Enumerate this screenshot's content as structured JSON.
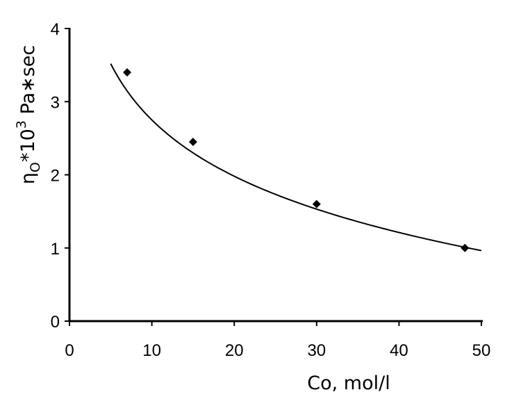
{
  "chart_data": {
    "type": "scatter",
    "title": "",
    "xlabel": "Co, mol/l",
    "ylabel": {
      "base": "η",
      "subscript": "O",
      "middle": "*10",
      "superscript": "3",
      "suffix": " Pa∗sec"
    },
    "xlim": [
      0,
      50
    ],
    "ylim": [
      0,
      4
    ],
    "x_ticks": [
      "0",
      "10",
      "20",
      "30",
      "40",
      "50"
    ],
    "y_ticks": [
      "0",
      "1",
      "2",
      "3",
      "4"
    ],
    "grid": false,
    "legend": "none",
    "series": [
      {
        "marker": "diamond",
        "color": "#000000",
        "x": [
          7,
          15,
          30,
          48
        ],
        "y": [
          3.4,
          2.45,
          1.6,
          1.0
        ]
      }
    ],
    "trendline": {
      "kind": "logarithmic",
      "color": "#000000",
      "x_range": [
        5,
        50
      ],
      "a": 5.305,
      "b": -1.1097
    }
  }
}
